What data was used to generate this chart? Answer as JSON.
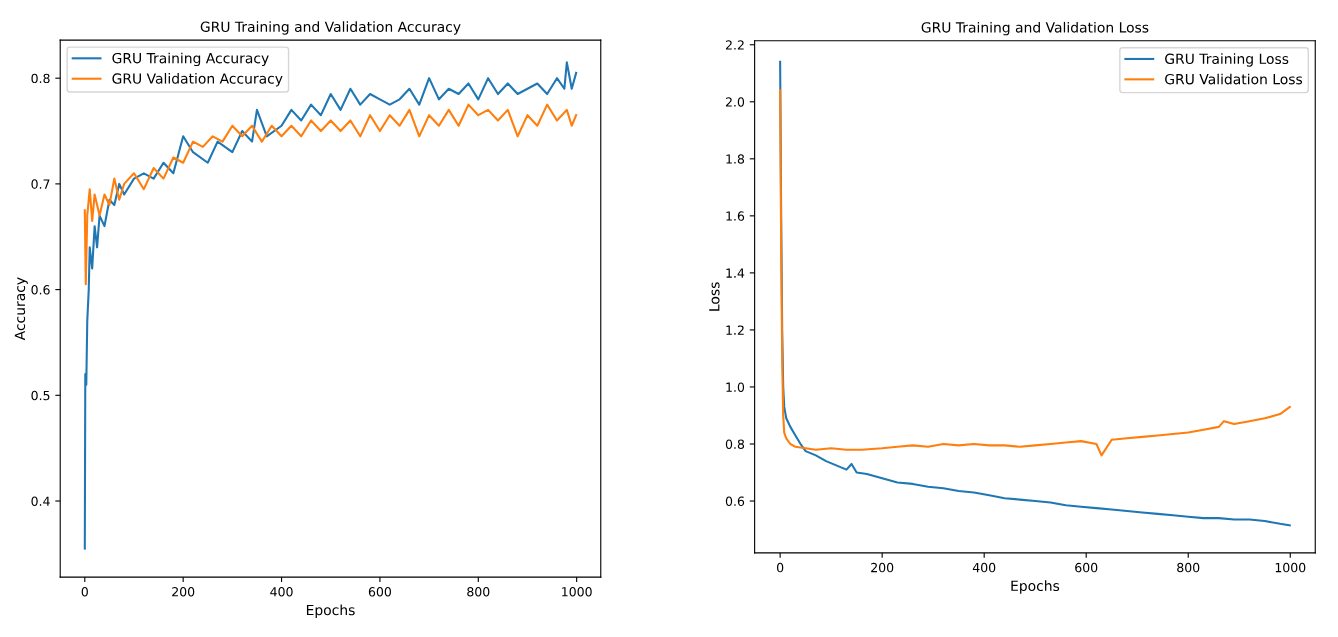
{
  "chart_data": [
    {
      "type": "line",
      "title": "GRU Training and Validation Accuracy",
      "xlabel": "Epochs",
      "ylabel": "Accuracy",
      "xlim": [
        -50,
        1049
      ],
      "ylim": [
        0.328,
        0.836
      ],
      "xticks": [
        0,
        200,
        400,
        600,
        800,
        1000
      ],
      "yticks": [
        0.4,
        0.5,
        0.6,
        0.7,
        0.8
      ],
      "legend": "top left",
      "grid": false,
      "series": [
        {
          "name": "GRU Training Accuracy",
          "color": "#1f77b4",
          "x": [
            0,
            1,
            3,
            5,
            8,
            10,
            15,
            20,
            25,
            30,
            40,
            50,
            60,
            70,
            80,
            100,
            120,
            140,
            160,
            180,
            200,
            220,
            250,
            270,
            300,
            320,
            340,
            350,
            370,
            400,
            420,
            440,
            460,
            480,
            500,
            520,
            540,
            560,
            580,
            600,
            620,
            640,
            660,
            680,
            700,
            720,
            740,
            760,
            780,
            800,
            820,
            840,
            860,
            880,
            900,
            920,
            940,
            960,
            975,
            980,
            990,
            999
          ],
          "values": [
            0.355,
            0.52,
            0.51,
            0.57,
            0.6,
            0.64,
            0.62,
            0.66,
            0.64,
            0.67,
            0.66,
            0.685,
            0.68,
            0.7,
            0.69,
            0.705,
            0.71,
            0.705,
            0.72,
            0.71,
            0.745,
            0.73,
            0.72,
            0.74,
            0.73,
            0.75,
            0.74,
            0.77,
            0.745,
            0.755,
            0.77,
            0.76,
            0.775,
            0.765,
            0.785,
            0.77,
            0.79,
            0.775,
            0.785,
            0.78,
            0.775,
            0.78,
            0.79,
            0.775,
            0.8,
            0.78,
            0.79,
            0.785,
            0.795,
            0.78,
            0.8,
            0.785,
            0.795,
            0.785,
            0.79,
            0.795,
            0.785,
            0.8,
            0.79,
            0.815,
            0.79,
            0.805
          ]
        },
        {
          "name": "GRU Validation Accuracy",
          "color": "#ff7f0e",
          "x": [
            0,
            2,
            5,
            10,
            15,
            20,
            30,
            40,
            50,
            60,
            70,
            80,
            100,
            120,
            140,
            160,
            180,
            200,
            220,
            240,
            260,
            280,
            300,
            320,
            340,
            360,
            380,
            400,
            420,
            440,
            460,
            480,
            500,
            520,
            540,
            560,
            580,
            600,
            620,
            640,
            660,
            680,
            700,
            720,
            740,
            760,
            780,
            800,
            820,
            840,
            860,
            880,
            900,
            920,
            940,
            960,
            980,
            990,
            999
          ],
          "values": [
            0.675,
            0.605,
            0.67,
            0.695,
            0.665,
            0.69,
            0.67,
            0.69,
            0.68,
            0.705,
            0.685,
            0.7,
            0.71,
            0.695,
            0.715,
            0.705,
            0.725,
            0.72,
            0.74,
            0.735,
            0.745,
            0.74,
            0.755,
            0.745,
            0.755,
            0.74,
            0.755,
            0.745,
            0.755,
            0.745,
            0.76,
            0.75,
            0.76,
            0.75,
            0.76,
            0.745,
            0.765,
            0.75,
            0.765,
            0.755,
            0.77,
            0.745,
            0.765,
            0.755,
            0.77,
            0.755,
            0.775,
            0.765,
            0.77,
            0.76,
            0.77,
            0.745,
            0.765,
            0.755,
            0.775,
            0.76,
            0.77,
            0.755,
            0.765
          ]
        }
      ]
    },
    {
      "type": "line",
      "title": "GRU Training and Validation Loss",
      "xlabel": "Epochs",
      "ylabel": "Loss",
      "xlim": [
        -50,
        1049
      ],
      "ylim": [
        0.418,
        2.214
      ],
      "xticks": [
        0,
        200,
        400,
        600,
        800,
        1000
      ],
      "yticks": [
        0.6,
        0.8,
        {
          "value": 1,
          "label": "1.0"
        },
        1.2,
        1.4,
        1.6,
        1.8,
        {
          "value": 2,
          "label": "2.0"
        },
        2.2
      ],
      "legend": "top right",
      "grid": false,
      "series": [
        {
          "name": "GRU Training Loss",
          "color": "#1f77b4",
          "x": [
            0,
            2,
            4,
            6,
            8,
            12,
            20,
            30,
            40,
            50,
            70,
            90,
            110,
            130,
            140,
            150,
            170,
            200,
            230,
            260,
            290,
            320,
            350,
            380,
            410,
            440,
            470,
            500,
            530,
            560,
            590,
            620,
            650,
            680,
            710,
            740,
            770,
            800,
            830,
            860,
            890,
            920,
            950,
            980,
            999
          ],
          "values": [
            2.14,
            1.6,
            1.2,
            1.0,
            0.93,
            0.89,
            0.86,
            0.83,
            0.8,
            0.775,
            0.76,
            0.74,
            0.725,
            0.71,
            0.73,
            0.7,
            0.695,
            0.68,
            0.665,
            0.66,
            0.65,
            0.645,
            0.635,
            0.63,
            0.62,
            0.61,
            0.605,
            0.6,
            0.595,
            0.585,
            0.58,
            0.575,
            0.57,
            0.565,
            0.56,
            0.555,
            0.55,
            0.545,
            0.54,
            0.54,
            0.535,
            0.535,
            0.53,
            0.52,
            0.515
          ]
        },
        {
          "name": "GRU Validation Loss",
          "color": "#ff7f0e",
          "x": [
            0,
            2,
            4,
            6,
            8,
            12,
            20,
            30,
            50,
            70,
            100,
            130,
            160,
            200,
            230,
            260,
            290,
            320,
            350,
            380,
            410,
            440,
            470,
            500,
            530,
            560,
            590,
            620,
            630,
            650,
            680,
            710,
            740,
            770,
            800,
            830,
            860,
            870,
            890,
            920,
            950,
            980,
            999
          ],
          "values": [
            2.04,
            1.5,
            1.1,
            0.9,
            0.84,
            0.82,
            0.8,
            0.79,
            0.785,
            0.78,
            0.785,
            0.78,
            0.78,
            0.785,
            0.79,
            0.795,
            0.79,
            0.8,
            0.795,
            0.8,
            0.795,
            0.795,
            0.79,
            0.795,
            0.8,
            0.805,
            0.81,
            0.8,
            0.76,
            0.815,
            0.82,
            0.825,
            0.83,
            0.835,
            0.84,
            0.85,
            0.86,
            0.88,
            0.87,
            0.88,
            0.89,
            0.905,
            0.93
          ]
        }
      ]
    }
  ]
}
